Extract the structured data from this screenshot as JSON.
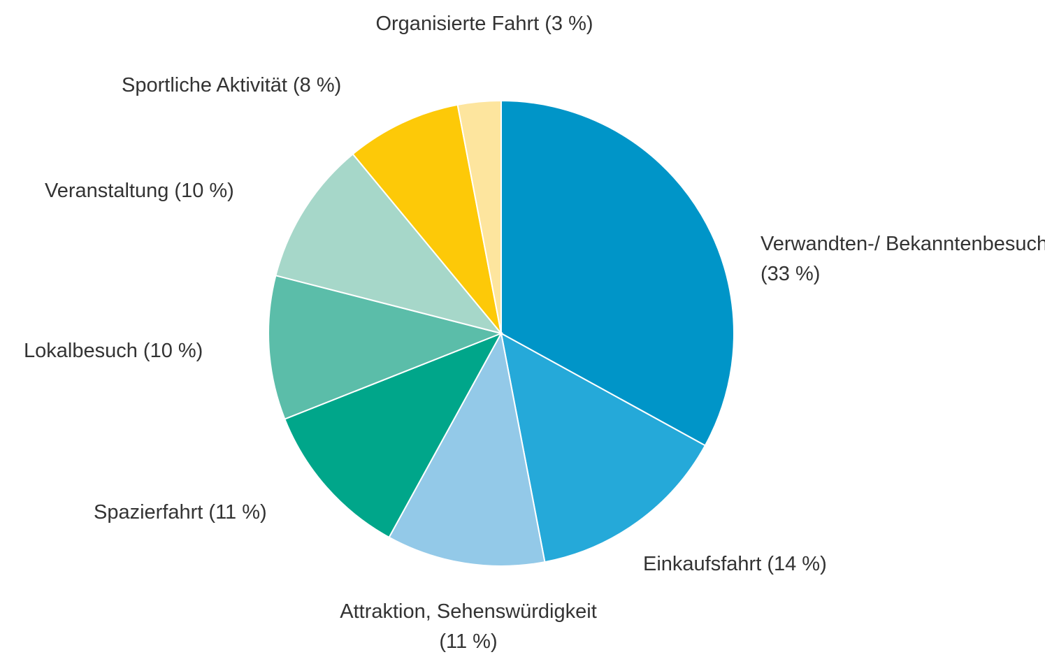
{
  "chart_data": {
    "type": "pie",
    "categories": [
      "Verwandten-/ Bekanntenbesuch",
      "Einkaufsfahrt",
      "Attraktion, Sehenswürdigkeit",
      "Spazierfahrt",
      "Lokalbesuch",
      "Veranstaltung",
      "Sportliche Aktivität",
      "Organisierte Fahrt"
    ],
    "values": [
      33,
      14,
      11,
      11,
      10,
      10,
      8,
      3
    ],
    "value_labels": [
      "(33 %)",
      "(14 %)",
      "(11 %)",
      "(11 %)",
      "(10 %)",
      "(10 %)",
      "(8 %)",
      "(3 %)"
    ],
    "colors": [
      "#0095c8",
      "#25a9d9",
      "#93c9e8",
      "#00a68a",
      "#5bbda9",
      "#a6d7c9",
      "#fdc908",
      "#fde59e"
    ]
  }
}
